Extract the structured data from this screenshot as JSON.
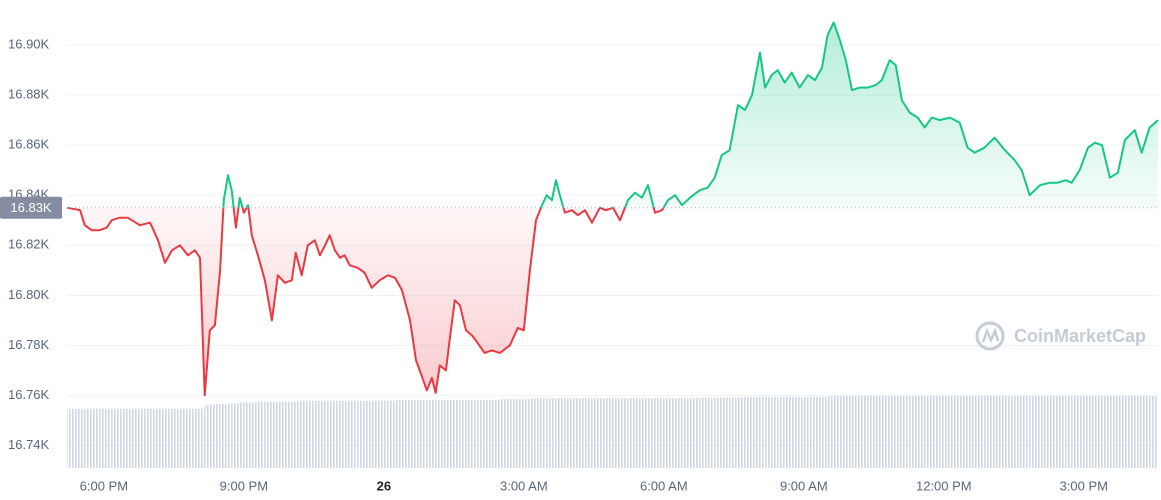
{
  "chart_data": {
    "type": "area",
    "xlim": [
      -0.79,
      22.59
    ],
    "xticks": [
      {
        "value": 0,
        "label": "6:00 PM"
      },
      {
        "value": 3,
        "label": "9:00 PM"
      },
      {
        "value": 6,
        "label": "26"
      },
      {
        "value": 9,
        "label": "3:00 AM"
      },
      {
        "value": 12,
        "label": "6:00 AM"
      },
      {
        "value": 15,
        "label": "9:00 AM"
      },
      {
        "value": 18,
        "label": "12:00 PM"
      },
      {
        "value": 21,
        "label": "3:00 PM"
      }
    ],
    "ylim": [
      16731,
      16918
    ],
    "yticks": [
      {
        "value": 16740,
        "label": "16.74K"
      },
      {
        "value": 16760,
        "label": "16.76K"
      },
      {
        "value": 16780,
        "label": "16.78K"
      },
      {
        "value": 16800,
        "label": "16.80K"
      },
      {
        "value": 16820,
        "label": "16.82K"
      },
      {
        "value": 16840,
        "label": "16.84K"
      },
      {
        "value": 16860,
        "label": "16.86K"
      },
      {
        "value": 16880,
        "label": "16.88K"
      },
      {
        "value": 16900,
        "label": "16.90K"
      }
    ],
    "grid": true,
    "reference": {
      "value": 16835,
      "label": "16.83K"
    },
    "up_color": "#16c784",
    "down_color": "#ea3943",
    "volume_color": "#cfd6e4",
    "watermark": "CoinMarketCap",
    "x": [
      -0.79,
      -0.51,
      -0.41,
      -0.26,
      -0.09,
      0.06,
      0.17,
      0.34,
      0.51,
      0.77,
      0.99,
      1.16,
      1.31,
      1.46,
      1.63,
      1.8,
      1.95,
      2.06,
      2.16,
      2.27,
      2.38,
      2.49,
      2.57,
      2.66,
      2.74,
      2.83,
      2.91,
      3.0,
      3.09,
      3.17,
      3.3,
      3.45,
      3.6,
      3.73,
      3.88,
      4.03,
      4.11,
      4.24,
      4.37,
      4.52,
      4.63,
      4.74,
      4.84,
      4.95,
      5.06,
      5.16,
      5.27,
      5.44,
      5.59,
      5.74,
      5.91,
      6.09,
      6.24,
      6.39,
      6.56,
      6.69,
      6.81,
      6.92,
      7.03,
      7.11,
      7.2,
      7.33,
      7.41,
      7.52,
      7.63,
      7.76,
      7.89,
      8.01,
      8.16,
      8.31,
      8.49,
      8.7,
      8.87,
      9.0,
      9.13,
      9.26,
      9.39,
      9.49,
      9.6,
      9.69,
      9.77,
      9.88,
      10.03,
      10.16,
      10.31,
      10.46,
      10.63,
      10.76,
      10.91,
      11.06,
      11.23,
      11.38,
      11.53,
      11.66,
      11.81,
      11.96,
      12.09,
      12.24,
      12.39,
      12.56,
      12.77,
      12.94,
      13.09,
      13.24,
      13.41,
      13.59,
      13.74,
      13.89,
      14.06,
      14.17,
      14.31,
      14.44,
      14.59,
      14.74,
      14.91,
      15.09,
      15.24,
      15.39,
      15.51,
      15.64,
      15.77,
      15.9,
      16.03,
      16.2,
      16.37,
      16.54,
      16.67,
      16.84,
      16.97,
      17.1,
      17.27,
      17.44,
      17.59,
      17.74,
      17.91,
      18.13,
      18.34,
      18.51,
      18.66,
      18.87,
      19.09,
      19.31,
      19.52,
      19.67,
      19.84,
      20.06,
      20.27,
      20.44,
      20.61,
      20.74,
      20.91,
      21.09,
      21.24,
      21.39,
      21.56,
      21.73,
      21.88,
      22.09,
      22.24,
      22.41,
      22.59
    ],
    "values": [
      16835,
      16834,
      16828,
      16826,
      16826,
      16827,
      16830,
      16831,
      16831,
      16828,
      16829,
      16822,
      16813,
      16818,
      16820,
      16816,
      16818,
      16815,
      16760,
      16786,
      16788,
      16810,
      16838,
      16848,
      16842,
      16827,
      16839,
      16833,
      16836,
      16824,
      16816,
      16806,
      16790,
      16808,
      16805,
      16806,
      16817,
      16808,
      16820,
      16822,
      16816,
      16820,
      16824,
      16818,
      16815,
      16816,
      16812,
      16811,
      16809,
      16803,
      16806,
      16808,
      16807,
      16802,
      16790,
      16774,
      16768,
      16762,
      16767,
      16761,
      16772,
      16770,
      16782,
      16798,
      16796,
      16786,
      16784,
      16781,
      16777,
      16778,
      16777,
      16780,
      16787,
      16786,
      16810,
      16830,
      16836,
      16840,
      16838,
      16846,
      16840,
      16833,
      16834,
      16832,
      16834,
      16829,
      16835,
      16834,
      16835,
      16830,
      16838,
      16841,
      16839,
      16844,
      16833,
      16834,
      16838,
      16840,
      16836,
      16839,
      16842,
      16843,
      16847,
      16856,
      16858,
      16876,
      16874,
      16880,
      16897,
      16883,
      16888,
      16890,
      16885,
      16889,
      16883,
      16888,
      16886,
      16891,
      16904,
      16909,
      16902,
      16894,
      16882,
      16883,
      16883,
      16884,
      16886,
      16894,
      16892,
      16878,
      16873,
      16871,
      16867,
      16871,
      16870,
      16871,
      16869,
      16859,
      16857,
      16859,
      16863,
      16858,
      16854,
      16850,
      16840,
      16844,
      16845,
      16845,
      16846,
      16845,
      16850,
      16859,
      16861,
      16860,
      16847,
      16849,
      16862,
      16866,
      16857,
      16867,
      16870
    ],
    "volume": [
      74,
      74,
      74,
      74,
      74,
      74,
      74,
      74,
      74,
      74,
      74,
      74,
      74,
      74,
      74,
      74,
      74,
      74,
      79,
      79,
      80,
      80,
      80,
      81,
      81,
      81,
      82,
      82,
      82,
      82,
      83,
      83,
      83,
      83,
      83,
      83,
      84,
      84,
      84,
      84,
      84,
      84,
      84,
      84,
      84,
      84,
      84,
      84,
      84,
      84,
      84,
      84,
      85,
      85,
      85,
      85,
      85,
      85,
      85,
      85,
      85,
      85,
      85,
      85,
      85,
      85,
      85,
      85,
      85,
      85,
      86,
      86,
      86,
      86,
      87,
      87,
      87,
      87,
      87,
      87,
      87,
      87,
      87,
      87,
      87,
      87,
      87,
      87,
      87,
      87,
      87,
      87,
      87,
      87,
      87,
      87,
      87,
      87,
      87,
      87,
      88,
      88,
      88,
      88,
      88,
      88,
      89,
      89,
      89,
      89,
      89,
      89,
      89,
      89,
      89,
      89,
      89,
      89,
      90,
      90,
      90,
      90,
      90,
      90,
      90,
      90,
      90,
      90,
      90,
      90,
      90,
      90,
      90,
      90,
      90,
      90,
      90,
      90,
      90,
      90,
      90,
      90,
      90,
      90,
      90,
      90,
      90,
      90,
      90,
      90,
      90,
      90,
      90,
      90,
      90,
      90,
      90,
      90,
      90,
      90,
      90
    ]
  }
}
